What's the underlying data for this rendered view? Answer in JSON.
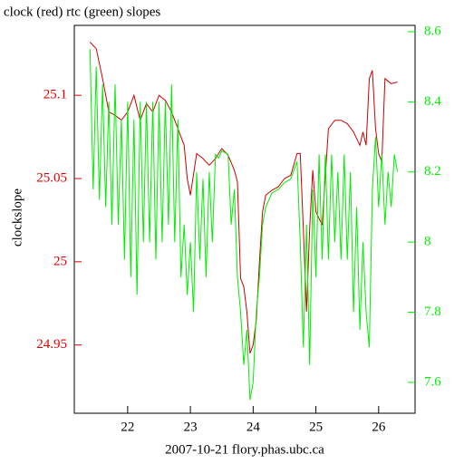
{
  "chart_data": {
    "type": "line",
    "title": "clock (red) rtc (green) slopes",
    "ylabel": "clockslope",
    "xlabel": "2007-10-21 flory.phas.ubc.ca",
    "xlim": [
      21.15,
      26.58
    ],
    "xticks": [
      22,
      23,
      24,
      25,
      26
    ],
    "ylim": [
      24.909,
      25.142
    ],
    "yticks": [
      24.95,
      25,
      25.05,
      25.1
    ],
    "y2lim": [
      7.512,
      8.618
    ],
    "y2ticks": [
      7.6,
      7.8,
      8,
      8.2,
      8.4,
      8.6
    ],
    "ycolor": "#dd0000",
    "y2color": "#00ee00",
    "series": [
      {
        "color": "#cc0000",
        "x": [
          21.4,
          21.5,
          21.6,
          21.7,
          21.8,
          21.9,
          22.0,
          22.1,
          22.2,
          22.3,
          22.4,
          22.5,
          22.6,
          22.7,
          22.8,
          22.9,
          22.95,
          23.0,
          23.1,
          23.2,
          23.3,
          23.4,
          23.5,
          23.6,
          23.7,
          23.75,
          23.8,
          23.85,
          23.9,
          23.95,
          24.0,
          24.05,
          24.1,
          24.15,
          24.2,
          24.3,
          24.4,
          24.5,
          24.6,
          24.7,
          24.75,
          24.8,
          24.85,
          24.9,
          24.95,
          25.0,
          25.1,
          25.2,
          25.3,
          25.4,
          25.5,
          25.6,
          25.7,
          25.75,
          25.8,
          25.85,
          25.9,
          25.95,
          26.0,
          26.05,
          26.1,
          26.2,
          26.3
        ],
        "values": [
          25.132,
          25.128,
          25.11,
          25.09,
          25.088,
          25.085,
          25.09,
          25.1,
          25.085,
          25.095,
          25.09,
          25.1,
          25.097,
          25.09,
          25.08,
          25.07,
          25.05,
          25.04,
          25.065,
          25.062,
          25.058,
          25.062,
          25.068,
          25.064,
          25.055,
          25.048,
          24.99,
          24.985,
          24.97,
          24.945,
          24.95,
          24.965,
          25.0,
          25.03,
          25.04,
          25.043,
          25.045,
          25.05,
          25.052,
          25.065,
          25.065,
          25.02,
          24.97,
          25.02,
          25.055,
          25.03,
          25.022,
          25.08,
          25.085,
          25.085,
          25.083,
          25.078,
          25.07,
          25.078,
          25.07,
          25.11,
          25.115,
          25.08,
          25.065,
          25.06,
          25.11,
          25.107,
          25.108
        ]
      },
      {
        "color": "#00ee00",
        "axis": "y2",
        "x": [
          21.4,
          21.45,
          21.5,
          21.55,
          21.6,
          21.65,
          21.7,
          21.75,
          21.8,
          21.85,
          21.9,
          21.95,
          22.0,
          22.05,
          22.1,
          22.15,
          22.2,
          22.25,
          22.3,
          22.35,
          22.4,
          22.45,
          22.5,
          22.55,
          22.6,
          22.65,
          22.7,
          22.75,
          22.8,
          22.85,
          22.9,
          22.95,
          23.0,
          23.05,
          23.1,
          23.15,
          23.2,
          23.25,
          23.3,
          23.35,
          23.4,
          23.45,
          23.5,
          23.6,
          23.65,
          23.7,
          23.75,
          23.8,
          23.85,
          23.9,
          23.95,
          24.0,
          24.05,
          24.1,
          24.15,
          24.2,
          24.3,
          24.4,
          24.5,
          24.6,
          24.7,
          24.75,
          24.8,
          24.85,
          24.9,
          24.95,
          25.0,
          25.05,
          25.1,
          25.15,
          25.2,
          25.25,
          25.3,
          25.35,
          25.4,
          25.45,
          25.5,
          25.55,
          25.6,
          25.65,
          25.7,
          25.75,
          25.8,
          25.85,
          25.9,
          25.95,
          26.0,
          26.05,
          26.1,
          26.15,
          26.2,
          26.25,
          26.3
        ],
        "values": [
          8.55,
          8.15,
          8.5,
          8.12,
          8.45,
          8.1,
          8.4,
          8.05,
          8.45,
          8.05,
          8.35,
          7.95,
          8.4,
          7.9,
          8.35,
          7.85,
          8.4,
          8.0,
          8.4,
          8.0,
          8.4,
          7.95,
          8.4,
          8.0,
          8.4,
          8.05,
          8.45,
          8.0,
          8.35,
          7.9,
          8.05,
          7.85,
          8.0,
          7.8,
          8.2,
          7.95,
          8.18,
          7.9,
          8.2,
          8.0,
          8.25,
          8.24,
          8.26,
          8.25,
          8.05,
          8.15,
          7.9,
          7.8,
          7.65,
          7.75,
          7.55,
          7.6,
          7.8,
          7.9,
          8.05,
          8.1,
          8.14,
          8.15,
          8.17,
          8.18,
          8.23,
          8.0,
          7.7,
          8.05,
          7.65,
          8.15,
          7.9,
          8.25,
          7.95,
          8.25,
          7.95,
          8.25,
          8.0,
          8.2,
          7.95,
          8.25,
          7.95,
          8.2,
          7.8,
          8.1,
          7.75,
          8.0,
          7.8,
          7.7,
          8.15,
          8.3,
          8.1,
          8.25,
          8.05,
          8.2,
          8.1,
          8.25,
          8.2
        ]
      }
    ]
  }
}
